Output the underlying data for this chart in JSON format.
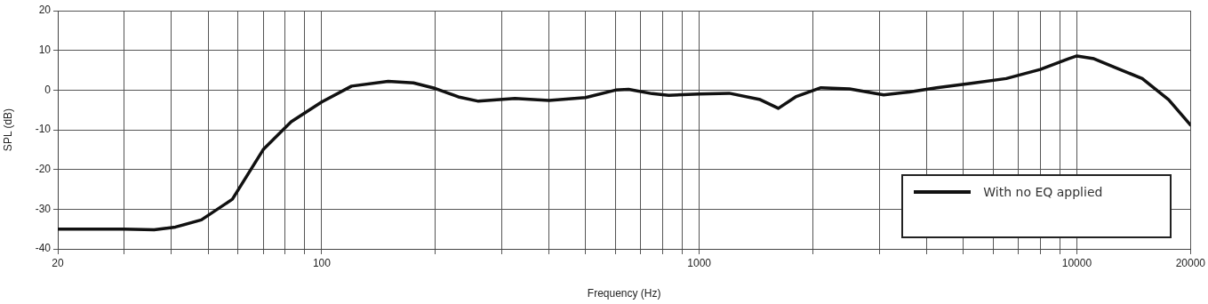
{
  "chart_data": {
    "type": "line",
    "xlabel": "Frequency (Hz)",
    "ylabel": "SPL (dB)",
    "log": "x",
    "xlim": [
      20,
      20000
    ],
    "xticks": [
      20,
      {
        "value": 30,
        "label": null
      },
      {
        "value": 40,
        "label": null
      },
      {
        "value": 50,
        "label": null
      },
      {
        "value": 60,
        "label": null
      },
      {
        "value": 70,
        "label": null
      },
      {
        "value": 80,
        "label": null
      },
      {
        "value": 90,
        "label": null
      },
      100,
      {
        "value": 200,
        "label": null
      },
      {
        "value": 300,
        "label": null
      },
      {
        "value": 400,
        "label": null
      },
      {
        "value": 500,
        "label": null
      },
      {
        "value": 600,
        "label": null
      },
      {
        "value": 700,
        "label": null
      },
      {
        "value": 800,
        "label": null
      },
      {
        "value": 900,
        "label": null
      },
      1000,
      {
        "value": 2000,
        "label": null
      },
      {
        "value": 3000,
        "label": null
      },
      {
        "value": 4000,
        "label": null
      },
      {
        "value": 5000,
        "label": null
      },
      {
        "value": 6000,
        "label": null
      },
      {
        "value": 7000,
        "label": null
      },
      {
        "value": 8000,
        "label": null
      },
      {
        "value": 9000,
        "label": null
      },
      10000,
      20000
    ],
    "ylim": [
      -40,
      20
    ],
    "yticks": [
      -40,
      -30,
      -20,
      -10,
      0,
      10,
      20
    ],
    "grid": true,
    "legend": "bottom right",
    "marker": "none",
    "line_style": "solid",
    "x": [
      20,
      24,
      30,
      36,
      41,
      48,
      58,
      70,
      83,
      100,
      120,
      150,
      175,
      200,
      230,
      260,
      325,
      400,
      500,
      600,
      650,
      750,
      830,
      1000,
      1200,
      1450,
      1620,
      1800,
      2100,
      2500,
      3080,
      3600,
      4250,
      5250,
      6500,
      8000,
      9500,
      10000,
      11100,
      12700,
      14900,
      17500,
      20000
    ],
    "series": [
      {
        "name": "With no EQ applied",
        "color": "#111111",
        "values": [
          -35,
          -35,
          -35,
          -35.2,
          -34.5,
          -32.7,
          -27.5,
          -15,
          -8,
          -3,
          1,
          2.2,
          1.8,
          0.4,
          -1.7,
          -2.8,
          -2.1,
          -2.6,
          -1.9,
          0,
          0.2,
          -0.9,
          -1.3,
          -1,
          -0.8,
          -2.4,
          -4.6,
          -1.7,
          0.6,
          0.3,
          -1.2,
          -0.5,
          0.6,
          1.7,
          2.9,
          5.2,
          7.9,
          8.6,
          7.9,
          5.6,
          2.9,
          -2.4,
          -8.8
        ]
      }
    ]
  }
}
